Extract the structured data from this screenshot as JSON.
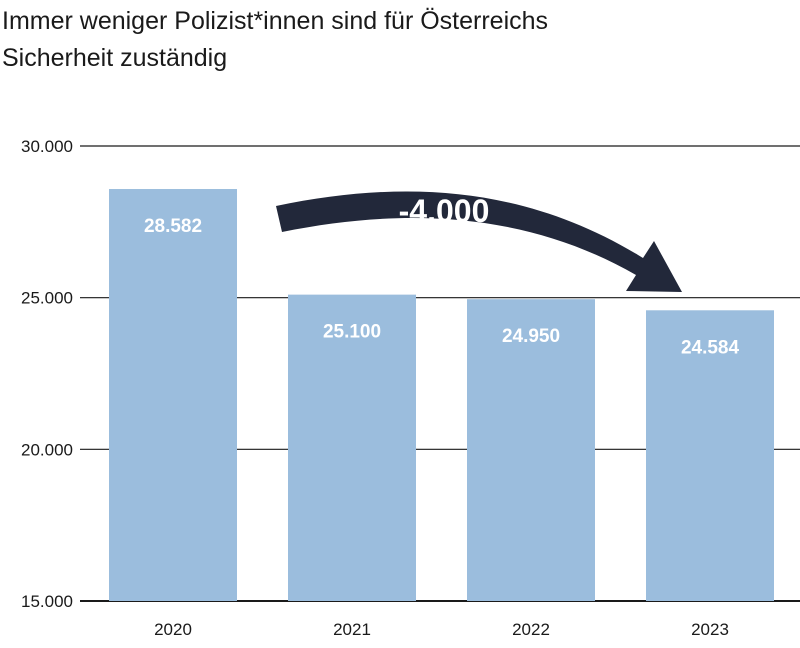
{
  "chart_data": {
    "type": "bar",
    "title_lines": [
      "Immer weniger Polizist*innen sind für Österreichs",
      "Sicherheit zuständig"
    ],
    "categories": [
      "2020",
      "2021",
      "2022",
      "2023"
    ],
    "values": [
      28582,
      25100,
      24950,
      24584
    ],
    "value_labels": [
      "28.582",
      "25.100",
      "24.950",
      "24.584"
    ],
    "ylim": [
      15000,
      30000
    ],
    "yticks": [
      15000,
      20000,
      25000,
      30000
    ],
    "ytick_labels": [
      "15.000",
      "20.000",
      "25.000",
      "30.000"
    ],
    "grid": true,
    "annotation": {
      "text": "-4.000",
      "from_category": "2020",
      "to_category": "2023"
    },
    "colors": {
      "bar": "#9bbddd",
      "grid": "#1a1a1a",
      "text": "#1a1a1a",
      "label": "#ffffff",
      "arrow": "#22283a"
    }
  }
}
